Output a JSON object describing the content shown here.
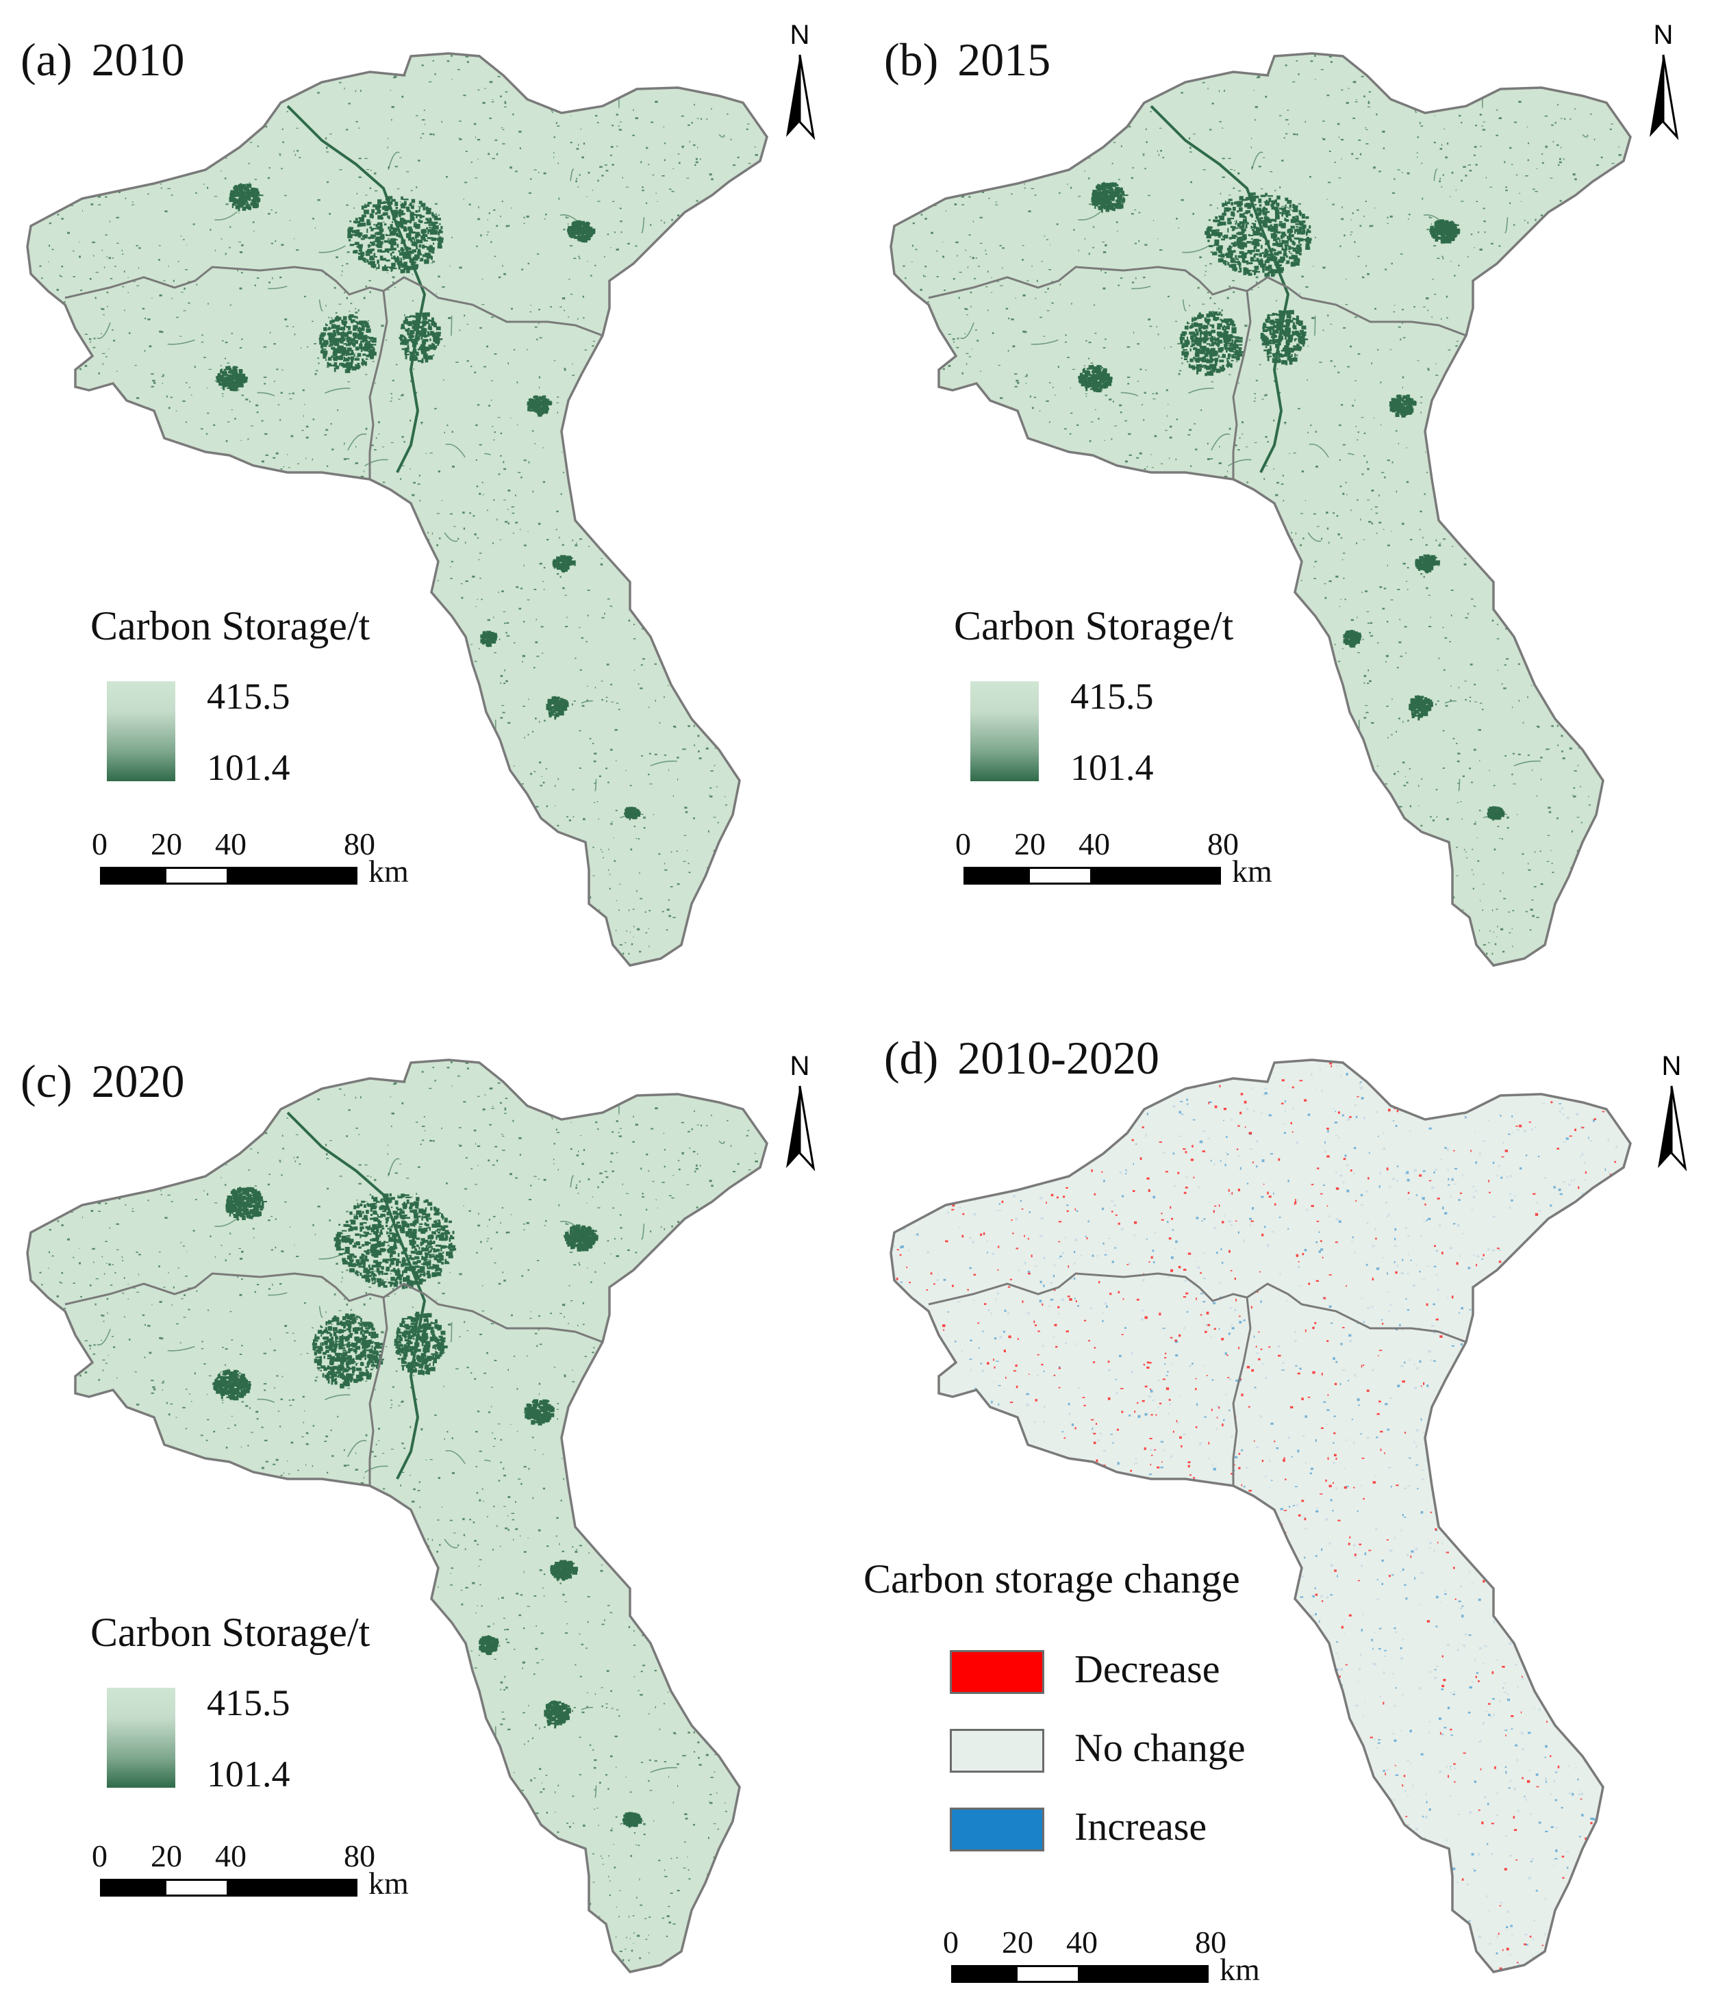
{
  "north_label": "N",
  "panels": [
    {
      "id": "a",
      "letter": "(a)",
      "year": "2010",
      "kind": "storage"
    },
    {
      "id": "b",
      "letter": "(b)",
      "year": "2015",
      "kind": "storage"
    },
    {
      "id": "c",
      "letter": "(c)",
      "year": "2020",
      "kind": "storage"
    },
    {
      "id": "d",
      "letter": "(d)",
      "year": "2010-2020",
      "kind": "change"
    }
  ],
  "storage_legend": {
    "title": "Carbon Storage/t",
    "max": "415.5",
    "min": "101.4",
    "color_high": "#d0e6d4",
    "color_low": "#2f6b4a"
  },
  "change_legend": {
    "title": "Carbon storage change",
    "items": [
      {
        "label": "Decrease",
        "color": "#ff0000"
      },
      {
        "label": "No change",
        "color": "#e6efea"
      },
      {
        "label": "Increase",
        "color": "#1a82c8"
      }
    ]
  },
  "scale_bar": {
    "ticks": [
      "0",
      "20",
      "40",
      "80"
    ],
    "unit": "km"
  },
  "colors": {
    "land": "#cfe4d2",
    "urban": "#2f6b4a",
    "boundary": "#7a7a7a",
    "change_bg": "#e7efea"
  }
}
